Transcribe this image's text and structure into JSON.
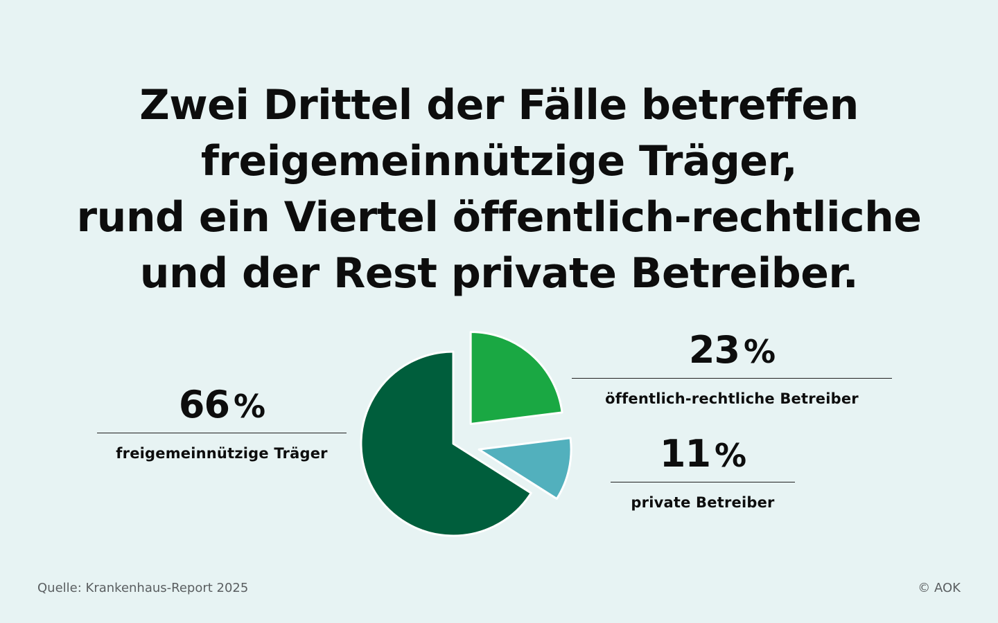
{
  "chart_data": {
    "type": "pie",
    "title": [
      "Zwei Drittel der Fälle betreffen",
      "freigemeinnützige Träger,",
      "rund ein Viertel öffentlich-rechtliche",
      "und der Rest private Betreiber."
    ],
    "categories": [
      "freigemeinnützige Träger",
      "öffentlich-rechtliche Betreiber",
      "private Betreiber"
    ],
    "values": [
      66,
      23,
      11
    ],
    "unit": "%",
    "value_labels": [
      "66",
      "23",
      "11"
    ],
    "colors": [
      "#005e3c",
      "#1aa843",
      "#52b0bd"
    ],
    "exploded": [
      false,
      true,
      true
    ]
  },
  "source": "Quelle: Krankenhaus-Report 2025",
  "copyright": "© AOK"
}
